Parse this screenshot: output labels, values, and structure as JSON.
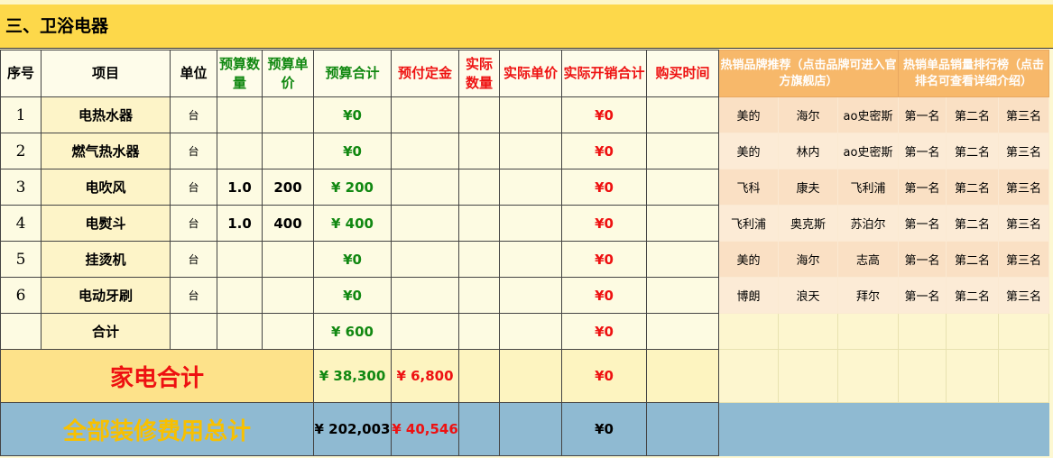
{
  "section_title": "三、卫浴电器",
  "headers": [
    "序号",
    "项目",
    "单位",
    "预算数量",
    "预算单价",
    "预算合计",
    "预付定金",
    "实际数量",
    "实际单价",
    "实际开销合计",
    "购买时间"
  ],
  "brand_header": "热销品牌推荐（点击品牌可进入官方旗舰店）",
  "rank_header": "热销单品销量排行榜（点击排名可查看详细介绍）",
  "rows": [
    {
      "seq": "1",
      "item": "电热水器",
      "unit": "台",
      "qty": "",
      "price": "",
      "budget": "¥0",
      "actual": "¥0",
      "brands": [
        "美的",
        "海尔",
        "ao史密斯"
      ],
      "ranks": [
        "第一名",
        "第二名",
        "第三名"
      ]
    },
    {
      "seq": "2",
      "item": "燃气热水器",
      "unit": "台",
      "qty": "",
      "price": "",
      "budget": "¥0",
      "actual": "¥0",
      "brands": [
        "美的",
        "林内",
        "ao史密斯"
      ],
      "ranks": [
        "第一名",
        "第二名",
        "第三名"
      ]
    },
    {
      "seq": "3",
      "item": "电吹风",
      "unit": "台",
      "qty": "1.0",
      "price": "200",
      "budget": "¥ 200",
      "actual": "¥0",
      "brands": [
        "飞科",
        "康夫",
        "飞利浦"
      ],
      "ranks": [
        "第一名",
        "第二名",
        "第三名"
      ]
    },
    {
      "seq": "4",
      "item": "电熨斗",
      "unit": "台",
      "qty": "1.0",
      "price": "400",
      "budget": "¥ 400",
      "actual": "¥0",
      "brands": [
        "飞利浦",
        "奥克斯",
        "苏泊尔"
      ],
      "ranks": [
        "第一名",
        "第二名",
        "第三名"
      ]
    },
    {
      "seq": "5",
      "item": "挂烫机",
      "unit": "台",
      "qty": "",
      "price": "",
      "budget": "¥0",
      "actual": "¥0",
      "brands": [
        "美的",
        "海尔",
        "志高"
      ],
      "ranks": [
        "第一名",
        "第二名",
        "第三名"
      ]
    },
    {
      "seq": "6",
      "item": "电动牙刷",
      "unit": "台",
      "qty": "",
      "price": "",
      "budget": "¥0",
      "actual": "¥0",
      "brands": [
        "博朗",
        "浪天",
        "拜尔"
      ],
      "ranks": [
        "第一名",
        "第二名",
        "第三名"
      ]
    }
  ],
  "subtotal": {
    "label": "合计",
    "budget": "¥ 600",
    "actual": "¥0"
  },
  "appliance_total": {
    "label": "家电合计",
    "budget": "¥ 38,300",
    "deposit": "¥ 6,800",
    "actual": "¥0"
  },
  "grand_total": {
    "label": "全部装修费用总计",
    "budget": "¥ 202,003",
    "deposit": "¥ 40,546",
    "actual": "¥0"
  }
}
